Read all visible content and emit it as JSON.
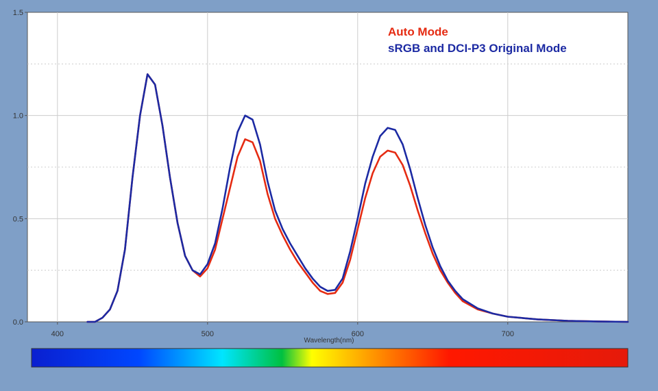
{
  "chart_data": {
    "type": "line",
    "title": "",
    "xlabel": "Wavelength(nm)",
    "ylabel": "",
    "xlim": [
      380,
      780
    ],
    "ylim": [
      0,
      1.5
    ],
    "x_ticks": [
      "400",
      "500",
      "600",
      "700"
    ],
    "y_ticks": [
      "0.0",
      "0.5",
      "1.0",
      "1.5"
    ],
    "grid": true,
    "legend_position": "top-right",
    "series": [
      {
        "name": "Auto Mode",
        "color": "#e52b12",
        "points": [
          [
            420,
            0
          ],
          [
            425,
            0
          ],
          [
            430,
            0.02
          ],
          [
            435,
            0.06
          ],
          [
            440,
            0.15
          ],
          [
            445,
            0.35
          ],
          [
            450,
            0.7
          ],
          [
            455,
            1.0
          ],
          [
            460,
            1.2
          ],
          [
            465,
            1.15
          ],
          [
            470,
            0.95
          ],
          [
            475,
            0.7
          ],
          [
            480,
            0.48
          ],
          [
            485,
            0.32
          ],
          [
            490,
            0.25
          ],
          [
            495,
            0.22
          ],
          [
            500,
            0.26
          ],
          [
            505,
            0.35
          ],
          [
            510,
            0.5
          ],
          [
            515,
            0.65
          ],
          [
            520,
            0.8
          ],
          [
            525,
            0.885
          ],
          [
            530,
            0.87
          ],
          [
            535,
            0.78
          ],
          [
            540,
            0.62
          ],
          [
            545,
            0.5
          ],
          [
            550,
            0.42
          ],
          [
            555,
            0.35
          ],
          [
            560,
            0.29
          ],
          [
            565,
            0.24
          ],
          [
            570,
            0.19
          ],
          [
            575,
            0.15
          ],
          [
            580,
            0.135
          ],
          [
            585,
            0.14
          ],
          [
            590,
            0.19
          ],
          [
            595,
            0.3
          ],
          [
            600,
            0.45
          ],
          [
            605,
            0.6
          ],
          [
            610,
            0.72
          ],
          [
            615,
            0.8
          ],
          [
            620,
            0.83
          ],
          [
            625,
            0.82
          ],
          [
            630,
            0.76
          ],
          [
            635,
            0.66
          ],
          [
            640,
            0.54
          ],
          [
            645,
            0.43
          ],
          [
            650,
            0.33
          ],
          [
            655,
            0.25
          ],
          [
            660,
            0.19
          ],
          [
            665,
            0.14
          ],
          [
            670,
            0.1
          ],
          [
            680,
            0.06
          ],
          [
            690,
            0.04
          ],
          [
            700,
            0.025
          ],
          [
            720,
            0.012
          ],
          [
            740,
            0.005
          ],
          [
            760,
            0.002
          ],
          [
            780,
            0
          ]
        ]
      },
      {
        "name": "sRGB and DCI-P3 Original Mode",
        "color": "#1c2aa3",
        "points": [
          [
            420,
            0
          ],
          [
            425,
            0
          ],
          [
            430,
            0.02
          ],
          [
            435,
            0.06
          ],
          [
            440,
            0.15
          ],
          [
            445,
            0.35
          ],
          [
            450,
            0.7
          ],
          [
            455,
            1.0
          ],
          [
            460,
            1.2
          ],
          [
            465,
            1.15
          ],
          [
            470,
            0.95
          ],
          [
            475,
            0.7
          ],
          [
            480,
            0.48
          ],
          [
            485,
            0.32
          ],
          [
            490,
            0.25
          ],
          [
            495,
            0.23
          ],
          [
            500,
            0.28
          ],
          [
            505,
            0.38
          ],
          [
            510,
            0.55
          ],
          [
            515,
            0.75
          ],
          [
            520,
            0.92
          ],
          [
            525,
            1.0
          ],
          [
            530,
            0.98
          ],
          [
            535,
            0.86
          ],
          [
            540,
            0.68
          ],
          [
            545,
            0.54
          ],
          [
            550,
            0.45
          ],
          [
            555,
            0.38
          ],
          [
            560,
            0.32
          ],
          [
            565,
            0.26
          ],
          [
            570,
            0.21
          ],
          [
            575,
            0.17
          ],
          [
            580,
            0.15
          ],
          [
            585,
            0.155
          ],
          [
            590,
            0.21
          ],
          [
            595,
            0.34
          ],
          [
            600,
            0.5
          ],
          [
            605,
            0.67
          ],
          [
            610,
            0.8
          ],
          [
            615,
            0.9
          ],
          [
            620,
            0.94
          ],
          [
            625,
            0.93
          ],
          [
            630,
            0.86
          ],
          [
            635,
            0.74
          ],
          [
            640,
            0.6
          ],
          [
            645,
            0.47
          ],
          [
            650,
            0.36
          ],
          [
            655,
            0.27
          ],
          [
            660,
            0.2
          ],
          [
            665,
            0.15
          ],
          [
            670,
            0.11
          ],
          [
            680,
            0.065
          ],
          [
            690,
            0.04
          ],
          [
            700,
            0.025
          ],
          [
            720,
            0.012
          ],
          [
            740,
            0.005
          ],
          [
            760,
            0.002
          ],
          [
            780,
            0
          ]
        ]
      }
    ]
  },
  "colors": {
    "page_background": "#7f9fc7",
    "plot_background": "#ffffff",
    "spectrum_bar": [
      "#0a1fd0",
      "#0047ff",
      "#00e5ff",
      "#00c040",
      "#ffff00",
      "#ff7a00",
      "#ff1800",
      "#e51a0a"
    ]
  }
}
